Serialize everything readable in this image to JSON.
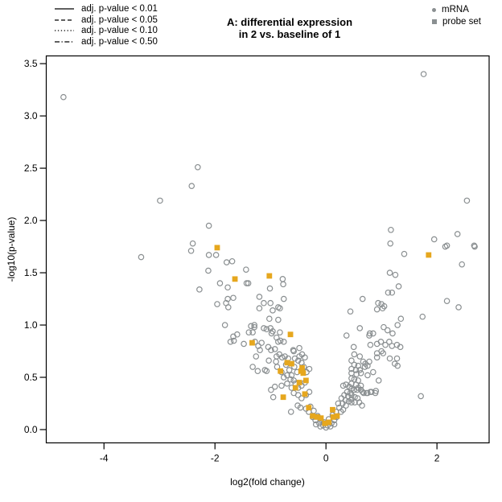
{
  "title": {
    "line1": "A: differential expression",
    "line2": "in 2 vs. baseline of 1"
  },
  "legend_lines": {
    "items": [
      {
        "style": "solid",
        "label": "adj. p-value < 0.01"
      },
      {
        "style": "dashed",
        "label": "adj. p-value < 0.05"
      },
      {
        "style": "dotted",
        "label": "adj. p-value < 0.10"
      },
      {
        "style": "dashdot",
        "label": "adj. p-value < 0.50"
      }
    ]
  },
  "legend_points": {
    "items": [
      {
        "marker": "circle",
        "label": "mRNA"
      },
      {
        "marker": "square",
        "label": "probe set"
      }
    ]
  },
  "colors": {
    "mrna": "#8a8f91",
    "probe_set": "#e6a71e",
    "axis": "#000000",
    "background": "#ffffff"
  },
  "chart_data": {
    "type": "scatter",
    "title": "A: differential expression in 2 vs. baseline of 1",
    "xlabel": "log2(fold change)",
    "ylabel": "-log10(p-value)",
    "xlim": [
      -5.04,
      2.94
    ],
    "ylim": [
      -0.127,
      3.574
    ],
    "x_tick_values": [
      -4,
      -2,
      0,
      2
    ],
    "x_tick_labels": [
      "-4",
      "-2",
      "0",
      "2"
    ],
    "y_tick_values": [
      0,
      0.5,
      1,
      1.5,
      2,
      2.5,
      3,
      3.5
    ],
    "y_tick_labels": [
      "0.0",
      "0.5",
      "1.0",
      "1.5",
      "2.0",
      "2.5",
      "3.0",
      "3.5"
    ],
    "grid": false,
    "legend_position": "top",
    "series": [
      {
        "name": "mRNA",
        "marker": "circle",
        "color": "#8a8f91",
        "points": [
          [
            -4.73,
            3.18
          ],
          [
            1.76,
            3.4
          ],
          [
            -2.31,
            2.51
          ],
          [
            -2.42,
            2.33
          ],
          [
            -2.99,
            2.19
          ],
          [
            2.54,
            2.19
          ],
          [
            -2.11,
            1.95
          ],
          [
            1.17,
            1.91
          ],
          [
            2.37,
            1.87
          ],
          [
            1.95,
            1.82
          ],
          [
            -2.4,
            1.78
          ],
          [
            1.16,
            1.78
          ],
          [
            2.18,
            1.76
          ],
          [
            2.67,
            1.76
          ],
          [
            2.15,
            1.75
          ],
          [
            2.68,
            1.75
          ],
          [
            -2.43,
            1.71
          ],
          [
            1.41,
            1.68
          ],
          [
            -2.11,
            1.67
          ],
          [
            -1.98,
            1.67
          ],
          [
            -3.33,
            1.65
          ],
          [
            2.45,
            1.58
          ],
          [
            -1.79,
            1.6
          ],
          [
            -1.69,
            1.61
          ],
          [
            -1.44,
            1.53
          ],
          [
            -2.12,
            1.52
          ],
          [
            1.15,
            1.5
          ],
          [
            1.25,
            1.48
          ],
          [
            -0.78,
            1.44
          ],
          [
            -1.91,
            1.4
          ],
          [
            -1.43,
            1.4
          ],
          [
            -1.4,
            1.4
          ],
          [
            -0.77,
            1.39
          ],
          [
            1.31,
            1.37
          ],
          [
            -1.77,
            1.36
          ],
          [
            -1.01,
            1.35
          ],
          [
            -2.28,
            1.34
          ],
          [
            1.12,
            1.31
          ],
          [
            1.19,
            1.31
          ],
          [
            -1.2,
            1.27
          ],
          [
            -1.67,
            1.26
          ],
          [
            -0.76,
            1.25
          ],
          [
            -1.77,
            1.25
          ],
          [
            0.66,
            1.25
          ],
          [
            2.18,
            1.23
          ],
          [
            -1.8,
            1.21
          ],
          [
            -1.12,
            1.21
          ],
          [
            -1.0,
            1.21
          ],
          [
            0.94,
            1.21
          ],
          [
            -1.96,
            1.2
          ],
          [
            1.0,
            1.2
          ],
          [
            1.05,
            1.18
          ],
          [
            -1.76,
            1.17
          ],
          [
            -0.86,
            1.17
          ],
          [
            2.39,
            1.17
          ],
          [
            1.02,
            1.16
          ],
          [
            -1.2,
            1.16
          ],
          [
            -0.83,
            1.16
          ],
          [
            0.92,
            1.15
          ],
          [
            -0.96,
            1.14
          ],
          [
            0.44,
            1.13
          ],
          [
            1.74,
            1.08
          ],
          [
            -1.02,
            1.06
          ],
          [
            1.35,
            1.06
          ],
          [
            -0.86,
            1.05
          ],
          [
            -1.82,
            1.0
          ],
          [
            -1.35,
            0.99
          ],
          [
            -1.29,
            1.0
          ],
          [
            1.29,
            1.0
          ],
          [
            -1.29,
            0.98
          ],
          [
            1.04,
            0.98
          ],
          [
            0.61,
            0.97
          ],
          [
            -1.12,
            0.97
          ],
          [
            -1.07,
            0.96
          ],
          [
            -1.0,
            0.97
          ],
          [
            1.11,
            0.95
          ],
          [
            -0.96,
            0.94
          ],
          [
            -1.39,
            0.93
          ],
          [
            -1.32,
            0.93
          ],
          [
            -0.98,
            0.92
          ],
          [
            -0.83,
            0.93
          ],
          [
            1.2,
            0.92
          ],
          [
            0.79,
            0.92
          ],
          [
            0.85,
            0.92
          ],
          [
            -1.6,
            0.91
          ],
          [
            0.78,
            0.9
          ],
          [
            0.37,
            0.9
          ],
          [
            -1.67,
            0.89
          ],
          [
            -0.89,
            0.88
          ],
          [
            -1.72,
            0.84
          ],
          [
            -1.66,
            0.85
          ],
          [
            -1.48,
            0.82
          ],
          [
            -1.28,
            0.84
          ],
          [
            -1.22,
            0.8
          ],
          [
            -1.16,
            0.83
          ],
          [
            -1.19,
            0.76
          ],
          [
            -1.04,
            0.79
          ],
          [
            -0.99,
            0.76
          ],
          [
            -0.92,
            0.77
          ],
          [
            -0.86,
            0.84
          ],
          [
            -0.82,
            0.85
          ],
          [
            -0.76,
            0.84
          ],
          [
            -0.84,
            0.72
          ],
          [
            -0.79,
            0.69
          ],
          [
            -0.59,
            0.76
          ],
          [
            -0.58,
            0.75
          ],
          [
            -0.48,
            0.78
          ],
          [
            -0.89,
            0.7
          ],
          [
            1.14,
            0.84
          ],
          [
            0.99,
            0.84
          ],
          [
            1.28,
            0.81
          ],
          [
            0.92,
            0.82
          ],
          [
            1.07,
            0.81
          ],
          [
            1.19,
            0.8
          ],
          [
            1.34,
            0.79
          ],
          [
            0.8,
            0.81
          ],
          [
            0.5,
            0.79
          ],
          [
            1.15,
            0.68
          ],
          [
            1.28,
            0.68
          ],
          [
            0.92,
            0.73
          ],
          [
            1.0,
            0.75
          ],
          [
            1.03,
            0.73
          ],
          [
            0.92,
            0.69
          ],
          [
            1.24,
            0.63
          ],
          [
            1.29,
            0.61
          ],
          [
            -1.26,
            0.7
          ],
          [
            -1.32,
            0.6
          ],
          [
            -1.23,
            0.56
          ],
          [
            -1.1,
            0.57
          ],
          [
            -1.07,
            0.56
          ],
          [
            -1.03,
            0.66
          ],
          [
            -0.9,
            0.65
          ],
          [
            -0.43,
            0.72
          ],
          [
            -0.38,
            0.69
          ],
          [
            -0.48,
            0.7
          ],
          [
            0.51,
            0.72
          ],
          [
            0.61,
            0.7
          ],
          [
            0.46,
            0.66
          ],
          [
            0.67,
            0.65
          ],
          [
            0.71,
            0.63
          ],
          [
            0.78,
            0.65
          ],
          [
            0.51,
            0.62
          ],
          [
            0.58,
            0.61
          ],
          [
            0.7,
            0.6
          ],
          [
            0.75,
            0.61
          ],
          [
            0.46,
            0.58
          ],
          [
            0.54,
            0.57
          ],
          [
            0.61,
            0.57
          ],
          [
            0.46,
            0.54
          ],
          [
            0.55,
            0.53
          ],
          [
            0.63,
            0.54
          ],
          [
            0.85,
            0.55
          ],
          [
            0.75,
            0.52
          ],
          [
            0.95,
            0.47
          ],
          [
            -0.62,
            0.52
          ],
          [
            -0.52,
            0.55
          ],
          [
            -0.57,
            0.6
          ],
          [
            -0.66,
            0.57
          ],
          [
            -0.72,
            0.62
          ],
          [
            -0.35,
            0.55
          ],
          [
            -0.3,
            0.58
          ],
          [
            -0.88,
            0.6
          ],
          [
            -0.8,
            0.55
          ],
          [
            -0.76,
            0.5
          ],
          [
            -0.7,
            0.52
          ],
          [
            -0.64,
            0.48
          ],
          [
            -0.58,
            0.47
          ],
          [
            -0.68,
            0.68
          ],
          [
            -0.74,
            0.7
          ],
          [
            -0.56,
            0.68
          ],
          [
            -0.5,
            0.66
          ],
          [
            -0.44,
            0.64
          ],
          [
            -0.4,
            0.6
          ],
          [
            0.46,
            0.49
          ],
          [
            0.51,
            0.48
          ],
          [
            0.58,
            0.47
          ],
          [
            0.46,
            0.44
          ],
          [
            0.54,
            0.43
          ],
          [
            0.63,
            0.42
          ],
          [
            0.46,
            0.39
          ],
          [
            0.56,
            0.38
          ],
          [
            0.66,
            0.36
          ],
          [
            0.73,
            0.35
          ],
          [
            0.8,
            0.36
          ],
          [
            0.9,
            0.37
          ],
          [
            0.46,
            0.33
          ],
          [
            0.52,
            0.31
          ],
          [
            -0.99,
            0.38
          ],
          [
            -0.92,
            0.41
          ],
          [
            -0.8,
            0.42
          ],
          [
            -0.95,
            0.31
          ],
          [
            -0.7,
            0.44
          ],
          [
            -0.62,
            0.4
          ],
          [
            -0.55,
            0.44
          ],
          [
            -0.5,
            0.4
          ],
          [
            -0.44,
            0.42
          ],
          [
            -0.38,
            0.45
          ],
          [
            -0.58,
            0.35
          ],
          [
            -0.5,
            0.33
          ],
          [
            -0.44,
            0.3
          ],
          [
            -0.36,
            0.33
          ],
          [
            -0.3,
            0.36
          ],
          [
            0.31,
            0.42
          ],
          [
            0.36,
            0.43
          ],
          [
            0.42,
            0.41
          ],
          [
            0.51,
            0.38
          ],
          [
            0.58,
            0.4
          ],
          [
            0.63,
            0.38
          ],
          [
            0.68,
            0.35
          ],
          [
            0.75,
            0.35
          ],
          [
            0.82,
            0.36
          ],
          [
            0.89,
            0.35
          ],
          [
            0.28,
            0.3
          ],
          [
            0.33,
            0.33
          ],
          [
            0.38,
            0.36
          ],
          [
            0.22,
            0.25
          ],
          [
            0.35,
            0.28
          ],
          [
            0.4,
            0.32
          ],
          [
            0.44,
            0.35
          ],
          [
            0.6,
            0.26
          ],
          [
            0.65,
            0.23
          ],
          [
            -0.63,
            0.17
          ],
          [
            -0.51,
            0.23
          ],
          [
            -0.46,
            0.21
          ],
          [
            -0.36,
            0.2
          ],
          [
            -0.31,
            0.17
          ],
          [
            -0.24,
            0.12
          ],
          [
            -0.19,
            0.09
          ],
          [
            -0.12,
            0.06
          ],
          [
            -0.05,
            0.04
          ],
          [
            0.03,
            0.04
          ],
          [
            0.1,
            0.06
          ],
          [
            0.15,
            0.09
          ],
          [
            0.19,
            0.12
          ],
          [
            0.27,
            0.17
          ],
          [
            0.31,
            0.19
          ],
          [
            0.36,
            0.23
          ],
          [
            0.41,
            0.27
          ],
          [
            0.46,
            0.29
          ],
          [
            0.46,
            0.26
          ],
          [
            -0.28,
            0.22
          ],
          [
            -0.22,
            0.18
          ],
          [
            -0.15,
            0.13
          ],
          [
            -0.09,
            0.09
          ],
          [
            -0.03,
            0.07
          ],
          [
            0.05,
            0.1
          ],
          [
            0.12,
            0.14
          ],
          [
            0.18,
            0.17
          ],
          [
            0.24,
            0.21
          ],
          [
            0.3,
            0.25
          ],
          [
            -0.18,
            0.05
          ],
          [
            -0.1,
            0.03
          ],
          [
            0.0,
            0.02
          ],
          [
            0.08,
            0.03
          ],
          [
            0.15,
            0.05
          ],
          [
            1.71,
            0.32
          ],
          [
            0.52,
            0.26
          ],
          [
            0.57,
            0.3
          ]
        ]
      },
      {
        "name": "probe set",
        "marker": "square",
        "color": "#e6a71e",
        "points": [
          [
            -1.96,
            1.74
          ],
          [
            1.85,
            1.67
          ],
          [
            -1.64,
            1.44
          ],
          [
            -1.02,
            1.47
          ],
          [
            -1.33,
            0.83
          ],
          [
            -0.64,
            0.91
          ],
          [
            -0.7,
            0.64
          ],
          [
            -0.62,
            0.63
          ],
          [
            -0.82,
            0.56
          ],
          [
            -0.43,
            0.59
          ],
          [
            -0.45,
            0.56
          ],
          [
            -0.41,
            0.54
          ],
          [
            -0.48,
            0.45
          ],
          [
            -0.36,
            0.47
          ],
          [
            -0.55,
            0.4
          ],
          [
            -0.77,
            0.31
          ],
          [
            -0.38,
            0.34
          ],
          [
            -0.31,
            0.21
          ],
          [
            -0.24,
            0.13
          ],
          [
            -0.16,
            0.12
          ],
          [
            -0.09,
            0.11
          ],
          [
            -0.02,
            0.06
          ],
          [
            0.05,
            0.07
          ],
          [
            0.13,
            0.12
          ],
          [
            0.2,
            0.13
          ],
          [
            0.12,
            0.19
          ]
        ]
      }
    ]
  }
}
